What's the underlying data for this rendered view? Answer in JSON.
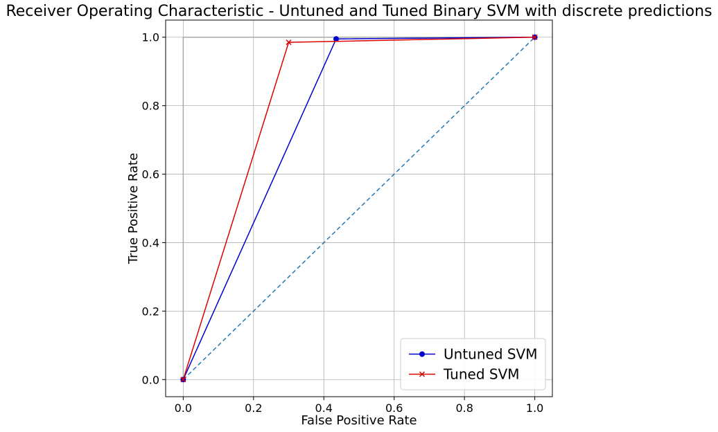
{
  "chart_data": {
    "type": "line",
    "title": "Receiver Operating Characteristic - Untuned and Tuned Binary SVM with discrete predictions",
    "xlabel": "False Positive Rate",
    "ylabel": "True Positive Rate",
    "xlim": [
      -0.05,
      1.05
    ],
    "ylim": [
      -0.05,
      1.05
    ],
    "xticks": [
      0.0,
      0.2,
      0.4,
      0.6,
      0.8,
      1.0
    ],
    "yticks": [
      0.0,
      0.2,
      0.4,
      0.6,
      0.8,
      1.0
    ],
    "xtick_labels": [
      "0.0",
      "0.2",
      "0.4",
      "0.6",
      "0.8",
      "1.0"
    ],
    "ytick_labels": [
      "0.0",
      "0.2",
      "0.4",
      "0.6",
      "0.8",
      "1.0"
    ],
    "grid": true,
    "legend_position": "lower-right",
    "series": [
      {
        "name": "Untuned SVM",
        "color": "#0000cc",
        "marker": "circle",
        "x": [
          0.0,
          0.435,
          1.0
        ],
        "y": [
          0.0,
          0.995,
          1.0
        ]
      },
      {
        "name": "Tuned SVM",
        "color": "#dd0000",
        "marker": "x",
        "x": [
          0.0,
          0.3,
          1.0
        ],
        "y": [
          0.0,
          0.985,
          1.0
        ]
      }
    ],
    "reference_lines": [
      {
        "style": "dashed",
        "color": "#1f77b4",
        "x": [
          0.0,
          1.0
        ],
        "y": [
          0.0,
          1.0
        ]
      },
      {
        "style": "solid",
        "color": "#aaaaaa",
        "x": [
          0.0,
          0.0,
          1.0
        ],
        "y": [
          0.0,
          1.0,
          1.0
        ]
      }
    ]
  }
}
